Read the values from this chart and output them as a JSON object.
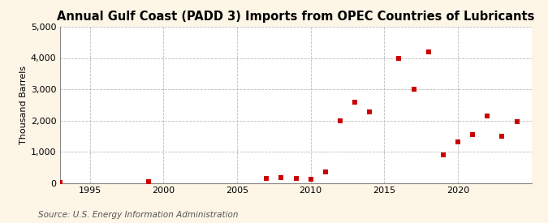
{
  "title": "Annual Gulf Coast (PADD 3) Imports from OPEC Countries of Lubricants",
  "ylabel": "Thousand Barrels",
  "source": "Source: U.S. Energy Information Administration",
  "years": [
    1993,
    1999,
    2007,
    2008,
    2009,
    2010,
    2011,
    2012,
    2013,
    2014,
    2016,
    2017,
    2018,
    2019,
    2020,
    2021,
    2022,
    2023,
    2024
  ],
  "values": [
    20,
    50,
    150,
    160,
    155,
    120,
    350,
    2000,
    2580,
    2280,
    4000,
    3000,
    4200,
    900,
    1300,
    1550,
    2150,
    1500,
    1950
  ],
  "marker_color": "#cc0000",
  "marker_size": 16,
  "bg_color": "#fdf5e6",
  "plot_bg": "#ffffff",
  "ylim": [
    0,
    5000
  ],
  "xlim": [
    1993,
    2025
  ],
  "yticks": [
    0,
    1000,
    2000,
    3000,
    4000,
    5000
  ],
  "xticks": [
    1995,
    2000,
    2005,
    2010,
    2015,
    2020
  ],
  "title_fontsize": 10.5,
  "ylabel_fontsize": 8,
  "tick_fontsize": 8,
  "source_fontsize": 7.5
}
